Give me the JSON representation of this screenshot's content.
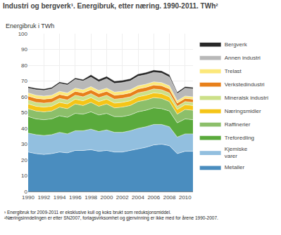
{
  "chart_data": {
    "type": "area",
    "title": "Industri og bergverk¹. Energibruk, etter næring. 1990-2011. TWh²",
    "ylabel": "Energibruk i TWh",
    "annotations": [
      "¹ Energibruk for 2009-2011 er eksklusive kull og koks brukt som reduksjonsmiddel.\n²Næringsinndelingen er etter SN2007, forlagsvirksomhet og gjenvinning er ikke med for årene 1990-2007."
    ],
    "x": [
      1990,
      1991,
      1992,
      1993,
      1994,
      1995,
      1996,
      1997,
      1998,
      1999,
      2000,
      2001,
      2002,
      2003,
      2004,
      2005,
      2006,
      2007,
      2008,
      2009,
      2010,
      2011
    ],
    "series": [
      {
        "name": "Metaller",
        "color": "#4a8dbf",
        "values": [
          25.0,
          24.0,
          23.5,
          24.0,
          25.0,
          24.5,
          26.0,
          26.0,
          26.5,
          25.5,
          26.0,
          25.0,
          25.0,
          26.0,
          27.0,
          28.0,
          29.5,
          30.0,
          29.0,
          24.0,
          25.5,
          25.5
        ]
      },
      {
        "name": "Kjemiske\nvarer",
        "color": "#92bfdf",
        "values": [
          12.0,
          12.0,
          12.0,
          12.0,
          12.5,
          12.0,
          12.5,
          12.5,
          13.0,
          12.5,
          13.0,
          12.5,
          12.5,
          12.5,
          13.0,
          13.0,
          13.0,
          12.5,
          12.0,
          10.5,
          11.0,
          11.0
        ]
      },
      {
        "name": "Treforedling",
        "color": "#5aaa3c",
        "values": [
          10.5,
          10.0,
          10.0,
          10.0,
          10.5,
          10.5,
          11.0,
          10.5,
          11.0,
          10.5,
          10.5,
          10.0,
          10.0,
          10.0,
          10.5,
          10.5,
          10.5,
          10.0,
          10.0,
          9.0,
          9.5,
          9.0
        ]
      },
      {
        "name": "Raffinerier",
        "color": "#8cbf6a",
        "values": [
          5.0,
          5.0,
          5.0,
          5.0,
          5.5,
          5.5,
          6.0,
          5.5,
          6.0,
          5.5,
          6.0,
          5.5,
          6.0,
          6.0,
          6.5,
          6.5,
          6.5,
          6.5,
          6.0,
          5.5,
          6.0,
          6.0
        ]
      },
      {
        "name": "Næringsmidler",
        "color": "#f5c518",
        "values": [
          3.0,
          3.0,
          3.0,
          3.0,
          3.0,
          3.0,
          3.0,
          3.0,
          3.0,
          3.0,
          3.0,
          3.0,
          3.0,
          3.0,
          3.0,
          3.0,
          3.0,
          3.0,
          3.0,
          3.0,
          3.0,
          3.0
        ]
      },
      {
        "name": "Mineralsk industri",
        "color": "#cce088",
        "values": [
          2.5,
          2.5,
          2.5,
          2.5,
          2.5,
          2.5,
          2.5,
          2.5,
          2.5,
          2.5,
          2.5,
          2.5,
          2.5,
          2.5,
          2.5,
          2.5,
          2.5,
          2.5,
          2.5,
          2.0,
          2.0,
          2.0
        ]
      },
      {
        "name": "Verkstedindustri",
        "color": "#e8801a",
        "values": [
          2.5,
          2.5,
          2.5,
          2.5,
          2.5,
          2.5,
          2.5,
          2.5,
          2.5,
          2.5,
          2.5,
          2.5,
          2.5,
          2.5,
          2.5,
          2.5,
          2.5,
          2.5,
          2.5,
          2.0,
          2.0,
          2.0
        ]
      },
      {
        "name": "Trelast",
        "color": "#fce87a",
        "values": [
          2.0,
          2.0,
          2.0,
          2.0,
          2.0,
          2.0,
          2.0,
          2.0,
          2.0,
          2.0,
          2.0,
          2.0,
          2.0,
          2.0,
          2.0,
          2.0,
          2.0,
          2.0,
          2.0,
          1.5,
          1.5,
          1.5
        ]
      },
      {
        "name": "Annen industri",
        "color": "#b8b8b8",
        "values": [
          3.0,
          3.5,
          3.5,
          4.0,
          5.0,
          5.0,
          5.5,
          5.5,
          6.0,
          5.5,
          6.0,
          5.5,
          5.5,
          5.5,
          6.0,
          6.0,
          6.0,
          6.0,
          5.5,
          4.5,
          5.0,
          5.0
        ]
      },
      {
        "name": "Bergverk",
        "color": "#282828",
        "values": [
          1.0,
          1.0,
          1.0,
          1.0,
          1.0,
          1.0,
          1.0,
          1.0,
          1.5,
          1.5,
          1.5,
          1.5,
          1.5,
          1.5,
          1.5,
          1.5,
          1.5,
          1.5,
          1.5,
          1.0,
          1.0,
          1.0
        ]
      }
    ],
    "stacked": true,
    "xlim": [
      1990,
      2011
    ],
    "xticks": [
      1990,
      1992,
      1994,
      1996,
      1998,
      2000,
      2002,
      2004,
      2006,
      2008,
      2010
    ],
    "ylim": [
      0,
      100
    ],
    "yticks": [
      0,
      10,
      20,
      30,
      40,
      50,
      60,
      70,
      80,
      90,
      100
    ],
    "grid": true,
    "legend": "right"
  }
}
